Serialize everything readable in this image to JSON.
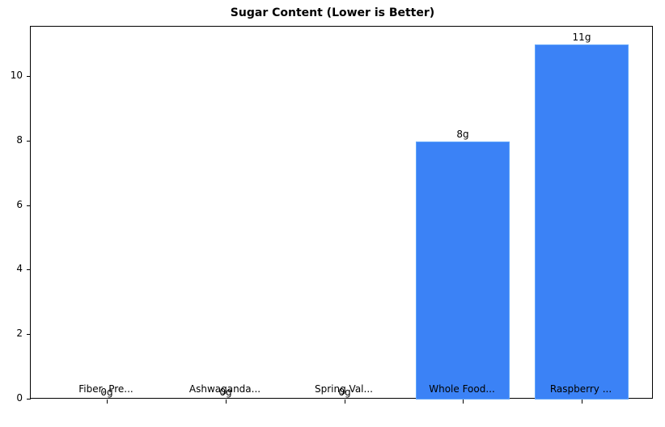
{
  "chart_data": {
    "type": "bar",
    "title": "Sugar Content (Lower is Better)",
    "xlabel": "",
    "ylabel": "",
    "categories": [
      "Fiber, Pre...",
      "Ashwaganda...",
      "Spring Val...",
      "Whole Food...",
      "Raspberry ..."
    ],
    "values": [
      0,
      0,
      0,
      8,
      11
    ],
    "value_labels": [
      "0g",
      "0g",
      "0g",
      "8g",
      "11g"
    ],
    "ylim": [
      0,
      11.55
    ],
    "yticks": [
      0,
      2,
      4,
      6,
      8,
      10
    ],
    "grid": false,
    "bar_color": "#3b82f6",
    "bar_edge_color": "#60a5fa"
  }
}
